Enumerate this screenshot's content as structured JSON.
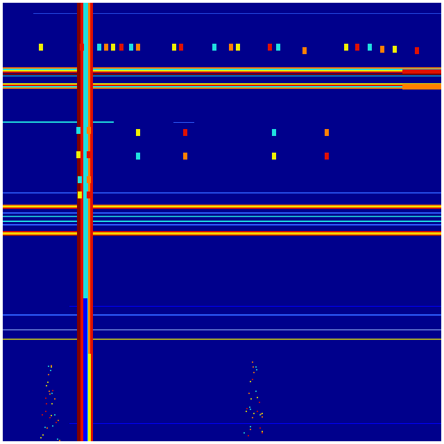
{
  "colormap": "jet",
  "colors": {
    "background": "#00008c",
    "dark_red": "#800000",
    "red": "#e01000",
    "orange": "#ff8000",
    "yellow": "#f0f000",
    "cyan": "#20e0e0",
    "light_blue": "#3060ff",
    "blue": "#0000ff"
  }
}
